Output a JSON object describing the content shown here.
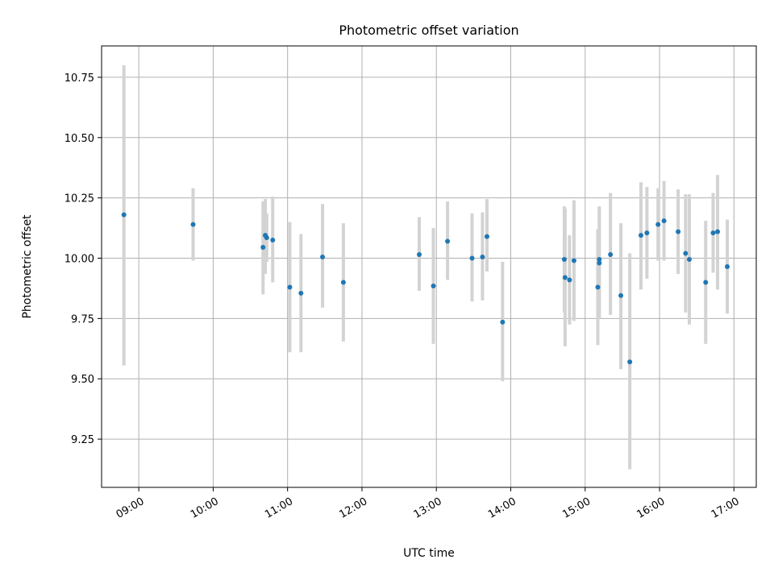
{
  "chart_data": {
    "type": "scatter",
    "title": "Photometric offset variation",
    "xlabel": "UTC time",
    "ylabel": "Photometric offset",
    "x_unit": "hours UTC",
    "xlim": [
      8.5,
      17.3
    ],
    "ylim": [
      9.05,
      10.88
    ],
    "x_ticks": [
      {
        "value": 9,
        "label": "09:00"
      },
      {
        "value": 10,
        "label": "10:00"
      },
      {
        "value": 11,
        "label": "11:00"
      },
      {
        "value": 12,
        "label": "12:00"
      },
      {
        "value": 13,
        "label": "13:00"
      },
      {
        "value": 14,
        "label": "14:00"
      },
      {
        "value": 15,
        "label": "15:00"
      },
      {
        "value": 16,
        "label": "16:00"
      },
      {
        "value": 17,
        "label": "17:00"
      }
    ],
    "y_ticks": [
      {
        "value": 9.25,
        "label": "9.25"
      },
      {
        "value": 9.5,
        "label": "9.50"
      },
      {
        "value": 9.75,
        "label": "9.75"
      },
      {
        "value": 10.0,
        "label": "10.00"
      },
      {
        "value": 10.25,
        "label": "10.25"
      },
      {
        "value": 10.5,
        "label": "10.50"
      },
      {
        "value": 10.75,
        "label": "10.75"
      }
    ],
    "grid": true,
    "marker_color": "#1f77b4",
    "errorbar_color": "#d3d3d3",
    "points": [
      {
        "x": 8.8,
        "y": 10.18,
        "ylow": 9.555,
        "yhigh": 10.8
      },
      {
        "x": 9.73,
        "y": 10.14,
        "ylow": 9.99,
        "yhigh": 10.29
      },
      {
        "x": 10.67,
        "y": 10.045,
        "ylow": 9.85,
        "yhigh": 10.235
      },
      {
        "x": 10.7,
        "y": 10.095,
        "ylow": 9.935,
        "yhigh": 10.245
      },
      {
        "x": 10.72,
        "y": 10.085,
        "ylow": 9.985,
        "yhigh": 10.185
      },
      {
        "x": 10.8,
        "y": 10.075,
        "ylow": 9.9,
        "yhigh": 10.255
      },
      {
        "x": 11.03,
        "y": 9.88,
        "ylow": 9.61,
        "yhigh": 10.15
      },
      {
        "x": 11.18,
        "y": 9.855,
        "ylow": 9.61,
        "yhigh": 10.1
      },
      {
        "x": 11.47,
        "y": 10.005,
        "ylow": 9.795,
        "yhigh": 10.225
      },
      {
        "x": 11.75,
        "y": 9.9,
        "ylow": 9.655,
        "yhigh": 10.145
      },
      {
        "x": 12.77,
        "y": 10.015,
        "ylow": 9.865,
        "yhigh": 10.17
      },
      {
        "x": 12.96,
        "y": 9.885,
        "ylow": 9.645,
        "yhigh": 10.125
      },
      {
        "x": 13.15,
        "y": 10.07,
        "ylow": 9.91,
        "yhigh": 10.235
      },
      {
        "x": 13.48,
        "y": 10.0,
        "ylow": 9.82,
        "yhigh": 10.185
      },
      {
        "x": 13.62,
        "y": 10.005,
        "ylow": 9.825,
        "yhigh": 10.19
      },
      {
        "x": 13.68,
        "y": 10.09,
        "ylow": 9.945,
        "yhigh": 10.245
      },
      {
        "x": 13.89,
        "y": 9.735,
        "ylow": 9.49,
        "yhigh": 9.985
      },
      {
        "x": 14.72,
        "y": 9.995,
        "ylow": 9.775,
        "yhigh": 10.215
      },
      {
        "x": 14.73,
        "y": 9.92,
        "ylow": 9.635,
        "yhigh": 10.205
      },
      {
        "x": 14.79,
        "y": 9.91,
        "ylow": 9.725,
        "yhigh": 10.095
      },
      {
        "x": 14.85,
        "y": 9.99,
        "ylow": 9.74,
        "yhigh": 10.24
      },
      {
        "x": 15.17,
        "y": 9.88,
        "ylow": 9.64,
        "yhigh": 10.12
      },
      {
        "x": 15.19,
        "y": 9.995,
        "ylow": 9.775,
        "yhigh": 10.215
      },
      {
        "x": 15.19,
        "y": 9.98,
        "ylow": 9.75,
        "yhigh": 10.21
      },
      {
        "x": 15.34,
        "y": 10.015,
        "ylow": 9.765,
        "yhigh": 10.27
      },
      {
        "x": 15.48,
        "y": 9.845,
        "ylow": 9.54,
        "yhigh": 10.145
      },
      {
        "x": 15.6,
        "y": 9.57,
        "ylow": 9.125,
        "yhigh": 10.02
      },
      {
        "x": 15.75,
        "y": 10.095,
        "ylow": 9.87,
        "yhigh": 10.315
      },
      {
        "x": 15.83,
        "y": 10.105,
        "ylow": 9.915,
        "yhigh": 10.295
      },
      {
        "x": 15.98,
        "y": 10.14,
        "ylow": 9.99,
        "yhigh": 10.29
      },
      {
        "x": 16.06,
        "y": 10.155,
        "ylow": 9.99,
        "yhigh": 10.32
      },
      {
        "x": 16.25,
        "y": 10.11,
        "ylow": 9.935,
        "yhigh": 10.285
      },
      {
        "x": 16.35,
        "y": 10.02,
        "ylow": 9.775,
        "yhigh": 10.265
      },
      {
        "x": 16.4,
        "y": 9.995,
        "ylow": 9.725,
        "yhigh": 10.265
      },
      {
        "x": 16.62,
        "y": 9.9,
        "ylow": 9.645,
        "yhigh": 10.155
      },
      {
        "x": 16.72,
        "y": 10.105,
        "ylow": 9.94,
        "yhigh": 10.27
      },
      {
        "x": 16.78,
        "y": 10.11,
        "ylow": 9.87,
        "yhigh": 10.345
      },
      {
        "x": 16.91,
        "y": 9.965,
        "ylow": 9.77,
        "yhigh": 10.16
      }
    ]
  }
}
